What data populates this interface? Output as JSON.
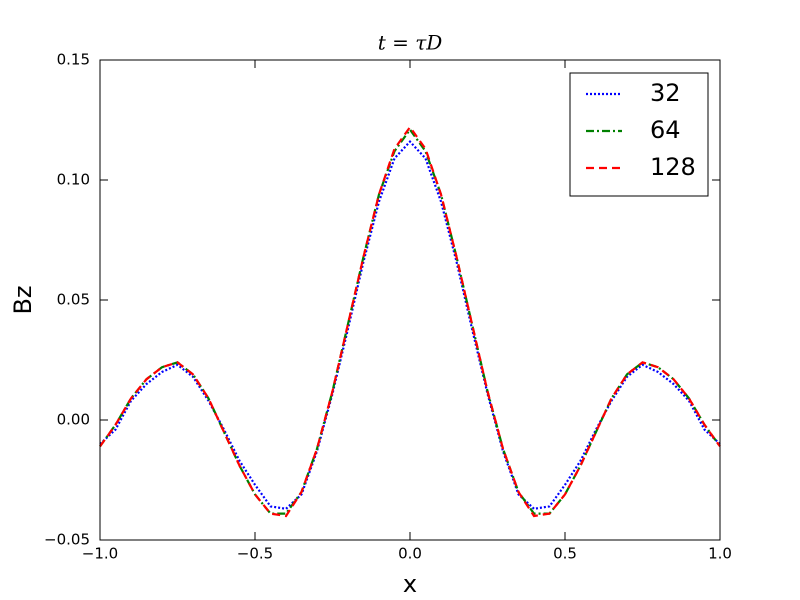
{
  "chart_data": {
    "type": "line",
    "title": "t = τD",
    "xlabel": "x",
    "ylabel": "Bz",
    "x": [
      -1.0,
      -0.95,
      -0.9,
      -0.85,
      -0.8,
      -0.75,
      -0.7,
      -0.65,
      -0.6,
      -0.55,
      -0.5,
      -0.45,
      -0.4,
      -0.35,
      -0.3,
      -0.25,
      -0.2,
      -0.15,
      -0.1,
      -0.05,
      0.0,
      0.05,
      0.1,
      0.15,
      0.2,
      0.25,
      0.3,
      0.35,
      0.4,
      0.45,
      0.5,
      0.55,
      0.6,
      0.65,
      0.7,
      0.75,
      0.8,
      0.85,
      0.9,
      0.95,
      1.0
    ],
    "series": [
      {
        "name": "32",
        "color": "#0000ff",
        "linestyle": "dotted",
        "values": [
          -0.01,
          -0.004,
          0.008,
          0.015,
          0.02,
          0.023,
          0.018,
          0.008,
          -0.004,
          -0.017,
          -0.027,
          -0.036,
          -0.037,
          -0.031,
          -0.013,
          0.011,
          0.038,
          0.066,
          0.091,
          0.109,
          0.116,
          0.109,
          0.091,
          0.066,
          0.038,
          0.011,
          -0.013,
          -0.031,
          -0.037,
          -0.036,
          -0.027,
          -0.017,
          -0.004,
          0.008,
          0.018,
          0.023,
          0.02,
          0.015,
          0.008,
          -0.004,
          -0.01
        ]
      },
      {
        "name": "64",
        "color": "#008000",
        "linestyle": "dashdot",
        "values": [
          -0.011,
          -0.002,
          0.009,
          0.017,
          0.022,
          0.024,
          0.019,
          0.009,
          -0.005,
          -0.019,
          -0.031,
          -0.039,
          -0.039,
          -0.03,
          -0.012,
          0.012,
          0.04,
          0.068,
          0.094,
          0.112,
          0.121,
          0.112,
          0.094,
          0.068,
          0.04,
          0.012,
          -0.012,
          -0.03,
          -0.039,
          -0.039,
          -0.031,
          -0.019,
          -0.005,
          0.009,
          0.019,
          0.024,
          0.022,
          0.017,
          0.009,
          -0.002,
          -0.011
        ]
      },
      {
        "name": "128",
        "color": "#ff0000",
        "linestyle": "dashed",
        "values": [
          -0.011,
          -0.002,
          0.009,
          0.017,
          0.022,
          0.024,
          0.019,
          0.009,
          -0.005,
          -0.019,
          -0.031,
          -0.039,
          -0.04,
          -0.03,
          -0.012,
          0.012,
          0.04,
          0.068,
          0.094,
          0.113,
          0.122,
          0.113,
          0.094,
          0.068,
          0.04,
          0.012,
          -0.012,
          -0.03,
          -0.04,
          -0.039,
          -0.031,
          -0.019,
          -0.005,
          0.009,
          0.019,
          0.024,
          0.022,
          0.017,
          0.009,
          -0.002,
          -0.011
        ]
      }
    ],
    "xlim": [
      -1.0,
      1.0
    ],
    "xticks": [
      {
        "value": -1.0,
        "label": "−1.0"
      },
      {
        "value": -0.5,
        "label": "−0.5"
      },
      {
        "value": 0.0,
        "label": "0.0"
      },
      {
        "value": 0.5,
        "label": "0.5"
      },
      {
        "value": 1.0,
        "label": "1.0"
      }
    ],
    "ylim": [
      -0.05,
      0.15
    ],
    "yticks": [
      {
        "value": -0.05,
        "label": "−0.05"
      },
      {
        "value": 0.0,
        "label": "0.00"
      },
      {
        "value": 0.05,
        "label": "0.05"
      },
      {
        "value": 0.1,
        "label": "0.10"
      },
      {
        "value": 0.15,
        "label": "0.15"
      }
    ],
    "legend": "upper right",
    "grid": false
  }
}
